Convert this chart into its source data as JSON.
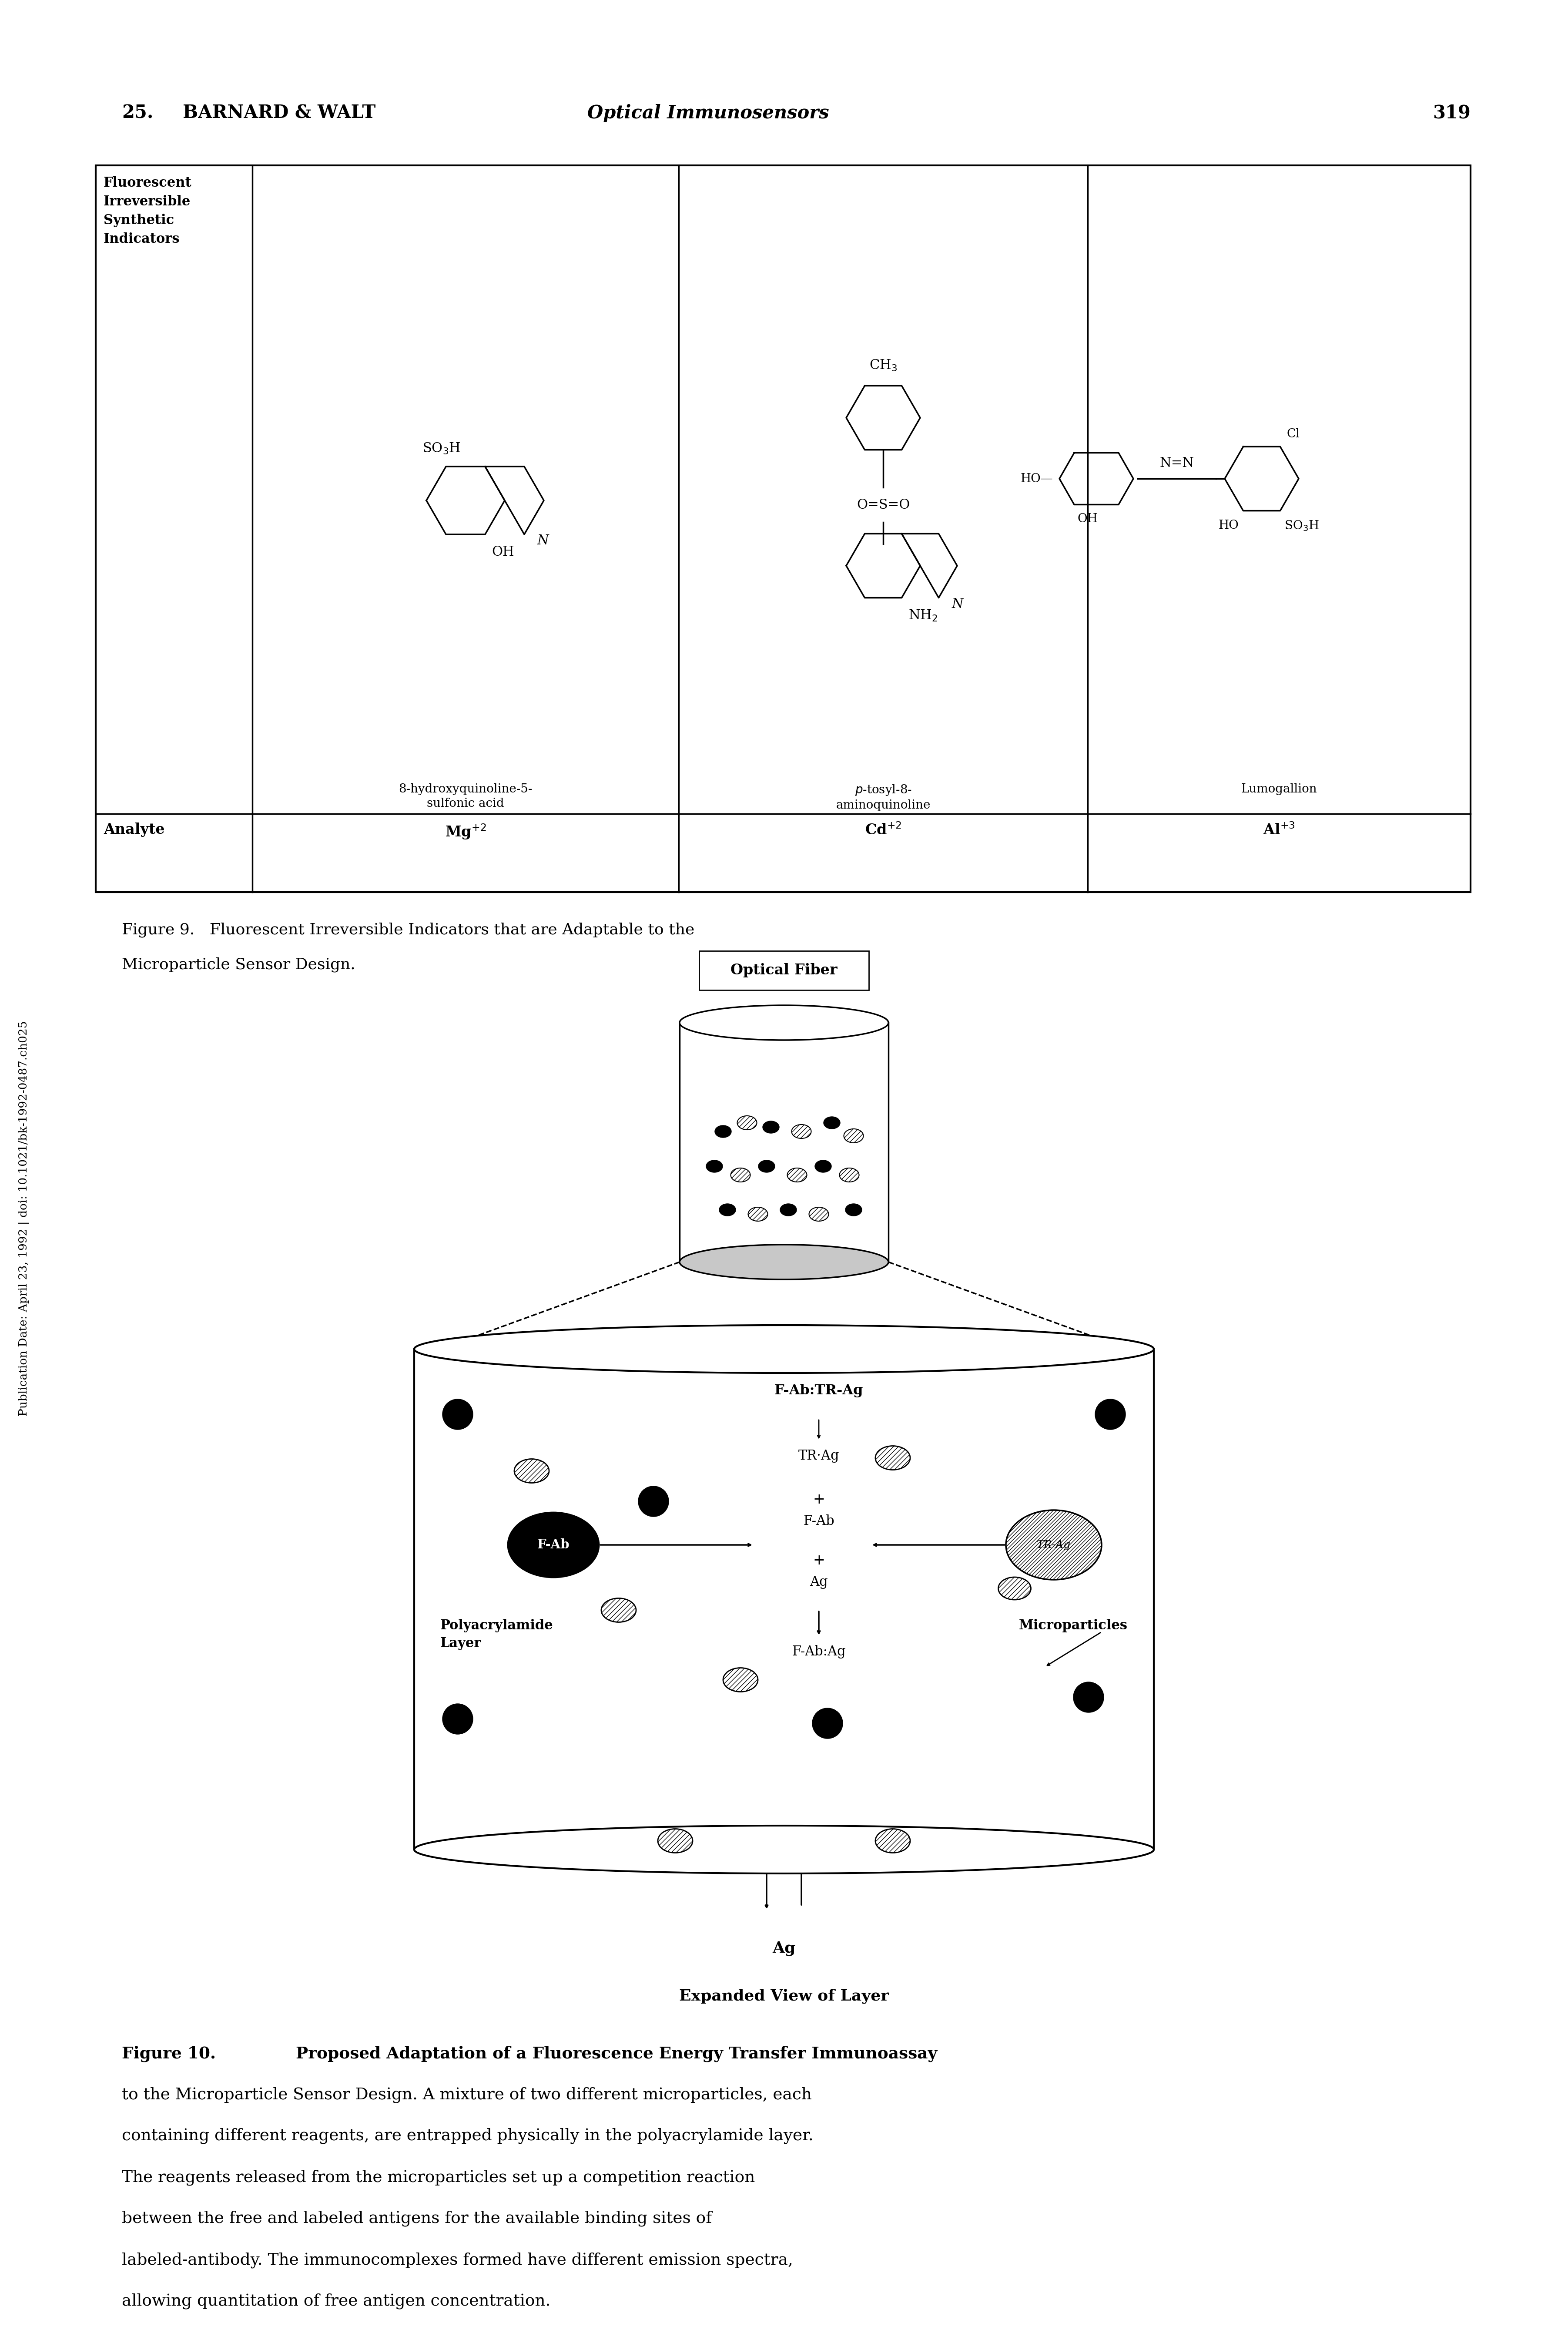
{
  "page_header_left": "25.  BARNARD & WALT",
  "page_header_italic": "Optical Immunosensors",
  "page_number": "319",
  "fig9_caption_line1": "Figure 9.   Fluorescent Irreversible Indicators that are Adaptable to the",
  "fig9_caption_line2": "Microparticle Sensor Design.",
  "fig10_caption_line1_bold": "Figure 10.",
  "fig10_caption_line1_normal": "  Proposed Adaptation of a Fluorescence Energy Transfer Immunoassay",
  "fig10_caption_line2": "to the Microparticle Sensor Design. A mixture of two different microparticles, each",
  "fig10_caption_line3": "containing different reagents, are entrapped physically in the polyacrylamide layer.",
  "fig10_caption_line4": "The reagents released from the microparticles set up a competition reaction",
  "fig10_caption_line5": "between the free and labeled antigens for the available binding sites of",
  "fig10_caption_line6": "labeled-antibody. The immunocomplexes formed have different emission spectra,",
  "fig10_caption_line7": "allowing quantitation of free antigen concentration.",
  "background_color": "#ffffff",
  "text_color": "#000000",
  "sidebar_text": "Publication Date: April 23, 1992 | doi: 10.1021/bk-1992-0487.ch025"
}
